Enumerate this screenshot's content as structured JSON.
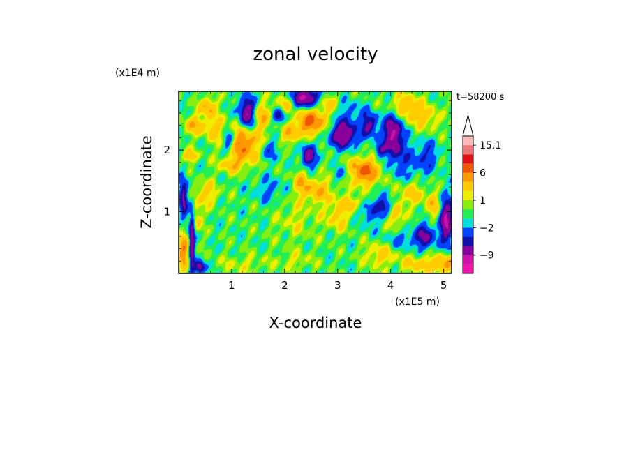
{
  "chart_data": {
    "type": "heatmap",
    "title": "zonal velocity",
    "xlabel": "X-coordinate",
    "ylabel": "Z-coordinate",
    "x_scale_label": "(x1E5 m)",
    "y_scale_label": "(x1E4 m)",
    "time_label": "t=58200 s",
    "xlim": [
      0,
      5.15
    ],
    "ylim": [
      0,
      2.95
    ],
    "x_ticks": [
      {
        "value": 1,
        "label": "1"
      },
      {
        "value": 2,
        "label": "2"
      },
      {
        "value": 3,
        "label": "3"
      },
      {
        "value": 4,
        "label": "4"
      },
      {
        "value": 5,
        "label": "5"
      }
    ],
    "y_ticks": [
      {
        "value": 1,
        "label": "1"
      },
      {
        "value": 2,
        "label": "2"
      }
    ],
    "colorbar": {
      "levels": [
        -15,
        -12,
        -9,
        -6,
        -4,
        -2,
        -1,
        0,
        1,
        2,
        4,
        6,
        9,
        12,
        15.1
      ],
      "colors": [
        "#ee11aa",
        "#cc11aa",
        "#880099",
        "#1111aa",
        "#0044ff",
        "#00dddd",
        "#22ee55",
        "#88ee11",
        "#eeee00",
        "#ffcc00",
        "#ff9900",
        "#ee5500",
        "#dd1111",
        "#ee7777",
        "#ffbbbb"
      ],
      "labels": [
        {
          "value": 15.1,
          "text": "15.1"
        },
        {
          "value": 6,
          "text": "6"
        },
        {
          "value": 1,
          "text": "1"
        },
        {
          "value": -2,
          "text": "−2"
        },
        {
          "value": -9,
          "text": "−9"
        }
      ]
    },
    "features": [
      {
        "x": 1.3,
        "z": 2.6,
        "rx": 0.15,
        "rz": 0.25,
        "v": -9
      },
      {
        "x": 0.95,
        "z": 2.15,
        "rx": 0.13,
        "rz": 0.2,
        "v": -6
      },
      {
        "x": 1.2,
        "z": 2.1,
        "rx": 0.32,
        "rz": 0.28,
        "v": 7
      },
      {
        "x": 0.7,
        "z": 2.35,
        "rx": 0.22,
        "rz": 0.2,
        "v": 3
      },
      {
        "x": 1.0,
        "z": 1.75,
        "rx": 0.25,
        "rz": 0.12,
        "v": 3
      },
      {
        "x": 0.55,
        "z": 2.7,
        "rx": 0.15,
        "rz": 0.15,
        "v": 5
      },
      {
        "x": 1.55,
        "z": 2.55,
        "rx": 0.2,
        "rz": 0.22,
        "v": 4
      },
      {
        "x": 1.7,
        "z": 2.0,
        "rx": 0.18,
        "rz": 0.15,
        "v": -3
      },
      {
        "x": 2.4,
        "z": 2.85,
        "rx": 0.25,
        "rz": 0.15,
        "v": -9
      },
      {
        "x": 2.0,
        "z": 2.75,
        "rx": 0.15,
        "rz": 0.15,
        "v": 3
      },
      {
        "x": 2.5,
        "z": 2.45,
        "rx": 0.3,
        "rz": 0.2,
        "v": 7
      },
      {
        "x": 2.1,
        "z": 2.25,
        "rx": 0.15,
        "rz": 0.15,
        "v": 4
      },
      {
        "x": 2.45,
        "z": 1.9,
        "rx": 0.12,
        "rz": 0.18,
        "v": -8
      },
      {
        "x": 3.1,
        "z": 2.25,
        "rx": 0.25,
        "rz": 0.2,
        "v": -9
      },
      {
        "x": 2.8,
        "z": 2.75,
        "rx": 0.2,
        "rz": 0.15,
        "v": 3
      },
      {
        "x": 3.5,
        "z": 1.65,
        "rx": 0.3,
        "rz": 0.22,
        "v": 7
      },
      {
        "x": 3.1,
        "z": 1.6,
        "rx": 0.15,
        "rz": 0.12,
        "v": -3
      },
      {
        "x": 3.25,
        "z": 2.6,
        "rx": 0.3,
        "rz": 0.2,
        "v": -2
      },
      {
        "x": 3.6,
        "z": 2.4,
        "rx": 0.15,
        "rz": 0.18,
        "v": -6
      },
      {
        "x": 3.0,
        "z": 0.95,
        "rx": 0.25,
        "rz": 0.25,
        "v": 3
      },
      {
        "x": 2.6,
        "z": 1.35,
        "rx": 0.3,
        "rz": 0.2,
        "v": 4
      },
      {
        "x": 2.3,
        "z": 1.5,
        "rx": 0.15,
        "rz": 0.2,
        "v": 3
      },
      {
        "x": 2.2,
        "z": 0.85,
        "rx": 0.4,
        "rz": 0.35,
        "v": 1.5
      },
      {
        "x": 3.3,
        "z": 1.15,
        "rx": 0.2,
        "rz": 0.12,
        "v": 3
      },
      {
        "x": 3.6,
        "z": 1.0,
        "rx": 0.2,
        "rz": 0.22,
        "v": -3
      },
      {
        "x": 3.9,
        "z": 1.1,
        "rx": 0.15,
        "rz": 0.15,
        "v": -5
      },
      {
        "x": 4.05,
        "z": 2.25,
        "rx": 0.18,
        "rz": 0.35,
        "v": -9
      },
      {
        "x": 4.2,
        "z": 2.7,
        "rx": 0.25,
        "rz": 0.2,
        "v": 4
      },
      {
        "x": 4.5,
        "z": 2.6,
        "rx": 0.2,
        "rz": 0.25,
        "v": 3
      },
      {
        "x": 4.3,
        "z": 1.8,
        "rx": 0.3,
        "rz": 0.3,
        "v": -2.5
      },
      {
        "x": 4.7,
        "z": 1.9,
        "rx": 0.2,
        "rz": 0.25,
        "v": -3
      },
      {
        "x": 4.8,
        "z": 2.5,
        "rx": 0.15,
        "rz": 0.2,
        "v": 2.5
      },
      {
        "x": 4.4,
        "z": 1.3,
        "rx": 0.25,
        "rz": 0.2,
        "v": 3
      },
      {
        "x": 4.1,
        "z": 0.95,
        "rx": 0.15,
        "rz": 0.25,
        "v": 3.5
      },
      {
        "x": 4.8,
        "z": 1.1,
        "rx": 0.15,
        "rz": 0.2,
        "v": 3.5
      },
      {
        "x": 4.65,
        "z": 0.6,
        "rx": 0.18,
        "rz": 0.2,
        "v": -6
      },
      {
        "x": 5.05,
        "z": 0.85,
        "rx": 0.12,
        "rz": 0.35,
        "v": -9
      },
      {
        "x": 5.0,
        "z": 0.15,
        "rx": 0.25,
        "rz": 0.15,
        "v": 5
      },
      {
        "x": 4.5,
        "z": 0.15,
        "rx": 0.3,
        "rz": 0.15,
        "v": 3
      },
      {
        "x": 3.8,
        "z": 0.3,
        "rx": 0.3,
        "rz": 0.2,
        "v": 3
      },
      {
        "x": 4.2,
        "z": 0.55,
        "rx": 0.3,
        "rz": 0.15,
        "v": -2.5
      },
      {
        "x": 0.1,
        "z": 1.2,
        "rx": 0.08,
        "rz": 0.35,
        "v": -7
      },
      {
        "x": 0.25,
        "z": 0.5,
        "rx": 0.05,
        "rz": 0.5,
        "v": -8
      },
      {
        "x": 0.1,
        "z": 0.35,
        "rx": 0.1,
        "rz": 0.3,
        "v": 6
      },
      {
        "x": 0.35,
        "z": 0.9,
        "rx": 0.1,
        "rz": 0.2,
        "v": 3
      },
      {
        "x": 0.5,
        "z": 1.3,
        "rx": 0.25,
        "rz": 0.2,
        "v": 3
      },
      {
        "x": 0.4,
        "z": 0.1,
        "rx": 0.1,
        "rz": 0.1,
        "v": -8
      },
      {
        "x": 0.3,
        "z": 2.4,
        "rx": 0.2,
        "rz": 0.15,
        "v": 4
      },
      {
        "x": 0.2,
        "z": 1.9,
        "rx": 0.15,
        "rz": 0.1,
        "v": 4
      },
      {
        "x": 1.7,
        "z": 1.35,
        "rx": 0.3,
        "rz": 0.2,
        "v": -2
      },
      {
        "x": 1.2,
        "z": 0.15,
        "rx": 0.5,
        "rz": 0.15,
        "v": 1.5
      },
      {
        "x": 2.2,
        "z": 0.2,
        "rx": 0.35,
        "rz": 0.15,
        "v": 1.5
      },
      {
        "x": 1.9,
        "z": 2.55,
        "rx": 0.12,
        "rz": 0.12,
        "v": -5
      },
      {
        "x": 3.8,
        "z": 2.0,
        "rx": 0.1,
        "rz": 0.1,
        "v": -5
      }
    ]
  }
}
